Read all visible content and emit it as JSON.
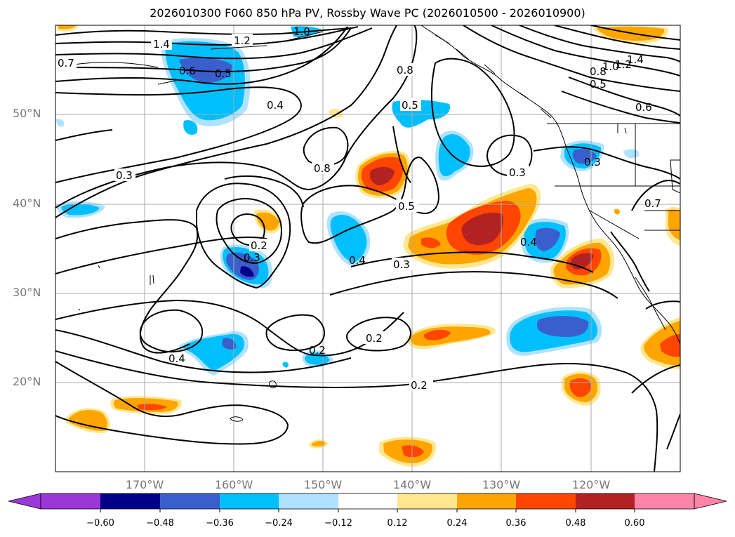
{
  "title": "2026010300 F060 850 hPa PV, Rossby Wave PC (2026010500 - 2026010900)",
  "lat_labels": [
    "50°N",
    "40°N",
    "30°N",
    "20°N"
  ],
  "lon_labels": [
    "170°W",
    "160°W",
    "150°W",
    "140°W",
    "130°W",
    "120°W"
  ],
  "colorbar": {
    "ticks": [
      "−0.60",
      "−0.48",
      "−0.36",
      "−0.24",
      "−0.12",
      "0.12",
      "0.24",
      "0.36",
      "0.48",
      "0.60"
    ],
    "colors": [
      "#9a37d6",
      "#00008b",
      "#3a5fcd",
      "#00bfff",
      "#b0e2ff",
      "#ffffff",
      "#ffe78f",
      "#ffa500",
      "#ff4500",
      "#b22222",
      "#ff85a8"
    ]
  },
  "contour_labels": [
    "1.4",
    "1.2",
    "0.7",
    "0.6",
    "0.5",
    "0.4",
    "0.3",
    "0.8",
    "0.5",
    "0.8",
    "0.3",
    "0.5",
    "0.2",
    "0.3",
    "0.4",
    "0.3",
    "0.4",
    "0.2",
    "0.2",
    "0.4",
    "0.2",
    "1.4",
    "1.2",
    "1.0",
    "0.8",
    "0.5",
    "0.6",
    "0.3",
    "0.7",
    "1.0"
  ]
}
